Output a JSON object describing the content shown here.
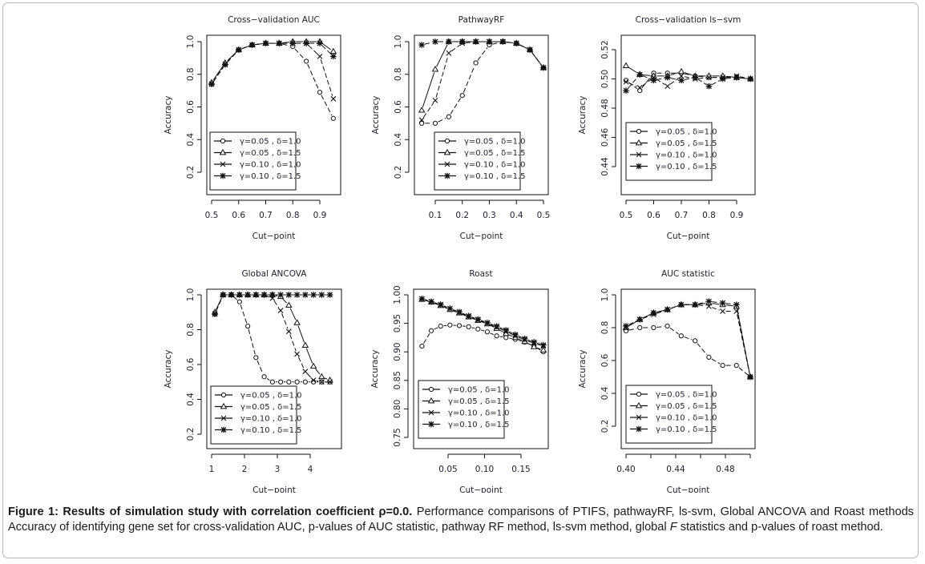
{
  "caption": {
    "bold": "Figure 1: Results of simulation study with correlation coefficient ρ=0.0.",
    "text_before_italic": " Performance comparisons of PTIFS, pathwayRF, ls-svm, Global ANCOVA and Roast methods Accuracy of identifying gene set for cross-validation AUC, p-values of AUC statistic, pathway RF method, ls-svm method, global ",
    "italic": "F",
    "text_after_italic": " statistics and p-values of roast method."
  },
  "legend_labels": [
    "γ=0.05 , δ=1.0",
    "γ=0.05 , δ=1.5",
    "γ=0.10 , δ=1.0",
    "γ=0.10 , δ=1.5"
  ],
  "marker_icons": [
    "circle-icon",
    "triangle-icon",
    "cross-icon",
    "asterisk-icon"
  ],
  "chart_data": [
    {
      "type": "line",
      "title": "Cross−validation AUC",
      "xlabel": "Cut−point",
      "ylabel": "Accuracy",
      "xlim": [
        0.5,
        0.95
      ],
      "ylim": [
        0.1,
        1.03
      ],
      "xticks": [
        0.5,
        0.6,
        0.7,
        0.8,
        0.9
      ],
      "xtick_labels": [
        "0.5",
        "0.6",
        "0.7",
        "0.8",
        "0.9"
      ],
      "yticks": [
        0.2,
        0.4,
        0.6,
        0.8,
        1.0
      ],
      "ytick_labels": [
        "0.2",
        "0.4",
        "0.6",
        "0.8",
        "1.0"
      ],
      "legend": "bottom-left",
      "x": [
        0.5,
        0.55,
        0.6,
        0.65,
        0.7,
        0.75,
        0.8,
        0.85,
        0.9,
        0.95
      ],
      "series": [
        {
          "name": "γ=0.05 , δ=1.0",
          "marker": "circle",
          "values": [
            0.74,
            0.86,
            0.95,
            0.98,
            0.99,
            0.99,
            0.97,
            0.88,
            0.69,
            0.53
          ]
        },
        {
          "name": "γ=0.05 , δ=1.5",
          "marker": "triangle",
          "values": [
            0.75,
            0.87,
            0.95,
            0.98,
            0.99,
            0.99,
            1.0,
            1.0,
            1.0,
            0.94
          ]
        },
        {
          "name": "γ=0.10 , δ=1.0",
          "marker": "cross",
          "values": [
            0.74,
            0.86,
            0.95,
            0.98,
            0.99,
            0.99,
            0.99,
            0.99,
            0.91,
            0.65
          ]
        },
        {
          "name": "γ=0.10 , δ=1.5",
          "marker": "asterisk",
          "values": [
            0.74,
            0.86,
            0.95,
            0.98,
            0.99,
            0.99,
            0.99,
            0.99,
            0.99,
            0.91
          ]
        }
      ]
    },
    {
      "type": "line",
      "title": "PathwayRF",
      "xlabel": "Cut−point",
      "ylabel": "Accuracy",
      "xlim": [
        0.05,
        0.5
      ],
      "ylim": [
        0.1,
        1.03
      ],
      "xticks": [
        0.1,
        0.2,
        0.3,
        0.4,
        0.5
      ],
      "xtick_labels": [
        "0.1",
        "0.2",
        "0.3",
        "0.4",
        "0.5"
      ],
      "yticks": [
        0.2,
        0.4,
        0.6,
        0.8,
        1.0
      ],
      "ytick_labels": [
        "0.2",
        "0.4",
        "0.6",
        "0.8",
        "1.0"
      ],
      "legend": "bottom-center",
      "x": [
        0.05,
        0.1,
        0.15,
        0.2,
        0.25,
        0.3,
        0.35,
        0.4,
        0.45,
        0.5
      ],
      "series": [
        {
          "name": "γ=0.05 , δ=1.0",
          "marker": "circle",
          "values": [
            0.5,
            0.5,
            0.54,
            0.67,
            0.87,
            0.98,
            1.0,
            0.99,
            0.95,
            0.84
          ]
        },
        {
          "name": "γ=0.05 , δ=1.5",
          "marker": "triangle",
          "values": [
            0.58,
            0.83,
            1.0,
            1.0,
            1.0,
            1.0,
            1.0,
            0.99,
            0.95,
            0.84
          ]
        },
        {
          "name": "γ=0.10 , δ=1.0",
          "marker": "cross",
          "values": [
            0.52,
            0.64,
            0.93,
            0.99,
            1.0,
            1.0,
            1.0,
            0.99,
            0.95,
            0.84
          ]
        },
        {
          "name": "γ=0.10 , δ=1.5",
          "marker": "asterisk",
          "values": [
            0.98,
            1.0,
            1.0,
            1.0,
            1.0,
            1.0,
            1.0,
            0.99,
            0.95,
            0.84
          ]
        }
      ]
    },
    {
      "type": "line",
      "title": "Cross−validation ls−svm",
      "xlabel": "Cut−point",
      "ylabel": "Accuracy",
      "xlim": [
        0.5,
        0.95
      ],
      "ylim": [
        0.425,
        0.525
      ],
      "xticks": [
        0.5,
        0.6,
        0.7,
        0.8,
        0.9
      ],
      "xtick_labels": [
        "0.5",
        "0.6",
        "0.7",
        "0.8",
        "0.9"
      ],
      "yticks": [
        0.44,
        0.46,
        0.48,
        0.5,
        0.52
      ],
      "ytick_labels": [
        "0.44",
        "0.46",
        "0.48",
        "0.50",
        "0.52"
      ],
      "legend": "bottom-left",
      "x": [
        0.5,
        0.55,
        0.6,
        0.65,
        0.7,
        0.75,
        0.8,
        0.85,
        0.9,
        0.95
      ],
      "series": [
        {
          "name": "γ=0.05 , δ=1.0",
          "marker": "circle",
          "values": [
            0.499,
            0.492,
            0.504,
            0.504,
            0.504,
            0.502,
            0.501,
            0.501,
            0.501,
            0.5
          ]
        },
        {
          "name": "γ=0.05 , δ=1.5",
          "marker": "triangle",
          "values": [
            0.509,
            0.503,
            0.502,
            0.502,
            0.505,
            0.502,
            0.502,
            0.502,
            0.501,
            0.5
          ]
        },
        {
          "name": "γ=0.10 , δ=1.0",
          "marker": "cross",
          "values": [
            0.498,
            0.494,
            0.501,
            0.495,
            0.502,
            0.5,
            0.501,
            0.501,
            0.502,
            0.5
          ]
        },
        {
          "name": "γ=0.10 , δ=1.5",
          "marker": "asterisk",
          "values": [
            0.492,
            0.503,
            0.499,
            0.501,
            0.499,
            0.501,
            0.495,
            0.5,
            0.501,
            0.5
          ]
        }
      ]
    },
    {
      "type": "line",
      "title": "Global ANCOVA",
      "xlabel": "Cut−point",
      "ylabel": "Accuracy",
      "xlim": [
        1.1,
        4.6
      ],
      "ylim": [
        0.12,
        1.03
      ],
      "xticks": [
        1,
        2,
        3,
        4
      ],
      "xtick_labels": [
        "1",
        "2",
        "3",
        "4"
      ],
      "yticks": [
        0.2,
        0.4,
        0.6,
        0.8,
        1.0
      ],
      "ytick_labels": [
        "0.2",
        "0.4",
        "0.6",
        "0.8",
        "1.0"
      ],
      "legend": "bottom-left",
      "x": [
        1.1,
        1.35,
        1.6,
        1.85,
        2.1,
        2.35,
        2.6,
        2.85,
        3.1,
        3.35,
        3.6,
        3.85,
        4.1,
        4.35,
        4.6
      ],
      "series": [
        {
          "name": "γ=0.05 , δ=1.0",
          "marker": "circle",
          "values": [
            0.89,
            1.0,
            1.0,
            0.96,
            0.82,
            0.64,
            0.53,
            0.5,
            0.5,
            0.5,
            0.5,
            0.5,
            0.5,
            0.5,
            0.5
          ]
        },
        {
          "name": "γ=0.05 , δ=1.5",
          "marker": "triangle",
          "values": [
            0.9,
            1.0,
            1.0,
            1.0,
            1.0,
            1.0,
            1.0,
            1.0,
            0.99,
            0.94,
            0.84,
            0.71,
            0.59,
            0.53,
            0.51
          ]
        },
        {
          "name": "γ=0.10 , δ=1.0",
          "marker": "cross",
          "values": [
            0.89,
            1.0,
            1.0,
            1.0,
            1.0,
            1.0,
            1.0,
            0.98,
            0.91,
            0.79,
            0.66,
            0.56,
            0.51,
            0.5,
            0.5
          ]
        },
        {
          "name": "γ=0.10 , δ=1.5",
          "marker": "asterisk",
          "values": [
            0.89,
            1.0,
            1.0,
            1.0,
            1.0,
            1.0,
            1.0,
            1.0,
            1.0,
            1.0,
            1.0,
            1.0,
            1.0,
            1.0,
            1.0
          ]
        }
      ]
    },
    {
      "type": "line",
      "title": "Roast",
      "xlabel": "Cut−point",
      "ylabel": "Accuracy",
      "xlim": [
        0.013,
        0.18
      ],
      "ylim": [
        0.74,
        1.005
      ],
      "xticks": [
        0.05,
        0.1,
        0.15
      ],
      "xtick_labels": [
        "0.05",
        "0.10",
        "0.15"
      ],
      "yticks": [
        0.75,
        0.8,
        0.85,
        0.9,
        0.95,
        1.0
      ],
      "ytick_labels": [
        "0.75",
        "0.80",
        "0.85",
        "0.90",
        "0.95",
        "1.00"
      ],
      "legend": "bottom-left",
      "x": [
        0.0142,
        0.027,
        0.0398,
        0.0526,
        0.0654,
        0.0782,
        0.091,
        0.1038,
        0.1166,
        0.1294,
        0.1422,
        0.155,
        0.1678,
        0.1806
      ],
      "series": [
        {
          "name": "γ=0.05 , δ=1.0",
          "marker": "circle",
          "values": [
            0.91,
            0.937,
            0.945,
            0.947,
            0.946,
            0.944,
            0.94,
            0.935,
            0.928,
            0.925,
            0.922,
            0.917,
            0.91,
            0.9
          ]
        },
        {
          "name": "γ=0.05 , δ=1.5",
          "marker": "triangle",
          "values": [
            0.992,
            0.987,
            0.981,
            0.974,
            0.968,
            0.961,
            0.955,
            0.949,
            0.941,
            0.932,
            0.925,
            0.918,
            0.909,
            0.903
          ]
        },
        {
          "name": "γ=0.10 , δ=1.0",
          "marker": "cross",
          "values": [
            0.993,
            0.988,
            0.982,
            0.976,
            0.969,
            0.962,
            0.956,
            0.95,
            0.943,
            0.936,
            0.928,
            0.921,
            0.915,
            0.91
          ]
        },
        {
          "name": "γ=0.10 , δ=1.5",
          "marker": "asterisk",
          "values": [
            0.993,
            0.988,
            0.983,
            0.976,
            0.97,
            0.963,
            0.957,
            0.951,
            0.945,
            0.938,
            0.93,
            0.923,
            0.917,
            0.912
          ]
        }
      ]
    },
    {
      "type": "line",
      "title": "AUC statistic",
      "xlabel": "Cut−point",
      "ylabel": "Accuracy",
      "xlim": [
        0.4,
        0.5
      ],
      "ylim": [
        0.12,
        1.03
      ],
      "xticks": [
        0.4,
        0.42,
        0.44,
        0.46,
        0.48,
        0.5
      ],
      "xtick_labels": [
        "0.40",
        "",
        "0.44",
        "",
        "0.48",
        ""
      ],
      "yticks": [
        0.2,
        0.4,
        0.6,
        0.8,
        1.0
      ],
      "ytick_labels": [
        "0.2",
        "0.4",
        "0.6",
        "0.8",
        "1.0"
      ],
      "legend": "bottom-left",
      "x": [
        0.4,
        0.4111,
        0.4222,
        0.4333,
        0.4444,
        0.4556,
        0.4667,
        0.4778,
        0.4889,
        0.5
      ],
      "series": [
        {
          "name": "γ=0.05 , δ=1.0",
          "marker": "circle",
          "values": [
            0.78,
            0.8,
            0.8,
            0.81,
            0.75,
            0.72,
            0.62,
            0.57,
            0.57,
            0.5
          ]
        },
        {
          "name": "γ=0.05 , δ=1.5",
          "marker": "triangle",
          "values": [
            0.8,
            0.85,
            0.89,
            0.91,
            0.94,
            0.94,
            0.95,
            0.94,
            0.93,
            0.5
          ]
        },
        {
          "name": "γ=0.10 , δ=1.0",
          "marker": "cross",
          "values": [
            0.8,
            0.85,
            0.88,
            0.91,
            0.94,
            0.94,
            0.93,
            0.9,
            0.9,
            0.5
          ]
        },
        {
          "name": "γ=0.10 , δ=1.5",
          "marker": "asterisk",
          "values": [
            0.81,
            0.85,
            0.89,
            0.91,
            0.94,
            0.94,
            0.96,
            0.95,
            0.94,
            0.5
          ]
        }
      ]
    }
  ]
}
